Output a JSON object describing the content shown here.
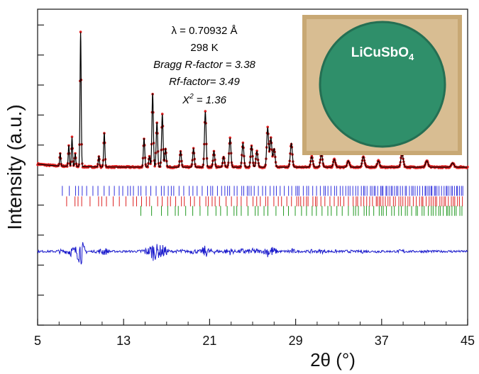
{
  "chart_data": {
    "type": "line",
    "title": "",
    "xlabel": "2θ (°)",
    "ylabel": "Intensity (a.u.)",
    "xlim": [
      5,
      45
    ],
    "x_ticks": [
      5,
      13,
      21,
      29,
      37,
      45
    ],
    "x_tick_labels": [
      "5",
      "13",
      "21",
      "29",
      "37",
      "45"
    ],
    "ylim": [
      -3.0,
      3.0
    ],
    "y_ticks_count": 11,
    "y_tick_labels_shown": false,
    "annotations": [
      {
        "text": "λ = 0.70932 Å",
        "italic": false
      },
      {
        "text": "298 K",
        "italic": false
      },
      {
        "text": "Bragg R-factor = 3.38",
        "italic": true
      },
      {
        "text": "Rf-factor=  3.49",
        "italic": true
      },
      {
        "text_base": "X",
        "text_sup": "2",
        "text_rest": " = 1.36",
        "italic": true
      }
    ],
    "inset": {
      "label_main": "LiCuSbO",
      "label_sub": "4",
      "caption_color": "#ffffff",
      "disk_color": "#2f8f6a",
      "frame_color": "#d4b78a"
    },
    "series": [
      {
        "name": "observed",
        "style": "markers",
        "color": "#e02020"
      },
      {
        "name": "calculated",
        "style": "line",
        "color": "#000000"
      },
      {
        "name": "difference",
        "style": "line",
        "color": "#1a1acc"
      },
      {
        "name": "bragg-phase-1",
        "style": "ticks",
        "color": "#3333dd"
      },
      {
        "name": "bragg-phase-2",
        "style": "ticks",
        "color": "#dd2222"
      },
      {
        "name": "bragg-phase-3",
        "style": "ticks",
        "color": "#229922"
      }
    ],
    "baseline": 0.0,
    "difference_offset": -1.6,
    "bragg_rows_y": [
      -0.45,
      -0.65,
      -0.83
    ],
    "peaks": [
      [
        7.1,
        0.25
      ],
      [
        7.9,
        0.4
      ],
      [
        8.2,
        0.55
      ],
      [
        8.5,
        0.25
      ],
      [
        9.0,
        2.55
      ],
      [
        10.7,
        0.2
      ],
      [
        11.2,
        0.65
      ],
      [
        14.9,
        0.55
      ],
      [
        15.4,
        0.2
      ],
      [
        15.7,
        1.4
      ],
      [
        16.1,
        0.85
      ],
      [
        16.6,
        1.0
      ],
      [
        16.9,
        0.35
      ],
      [
        18.3,
        0.3
      ],
      [
        19.5,
        0.35
      ],
      [
        20.6,
        1.05
      ],
      [
        21.4,
        0.3
      ],
      [
        22.3,
        0.2
      ],
      [
        22.9,
        0.55
      ],
      [
        24.1,
        0.45
      ],
      [
        24.9,
        0.4
      ],
      [
        25.4,
        0.3
      ],
      [
        26.4,
        0.75
      ],
      [
        26.7,
        0.55
      ],
      [
        27.0,
        0.35
      ],
      [
        28.6,
        0.45
      ],
      [
        30.5,
        0.2
      ],
      [
        31.4,
        0.25
      ],
      [
        32.6,
        0.15
      ],
      [
        33.9,
        0.12
      ],
      [
        35.3,
        0.2
      ],
      [
        36.7,
        0.12
      ],
      [
        38.9,
        0.25
      ],
      [
        41.2,
        0.12
      ],
      [
        43.6,
        0.08
      ]
    ]
  }
}
